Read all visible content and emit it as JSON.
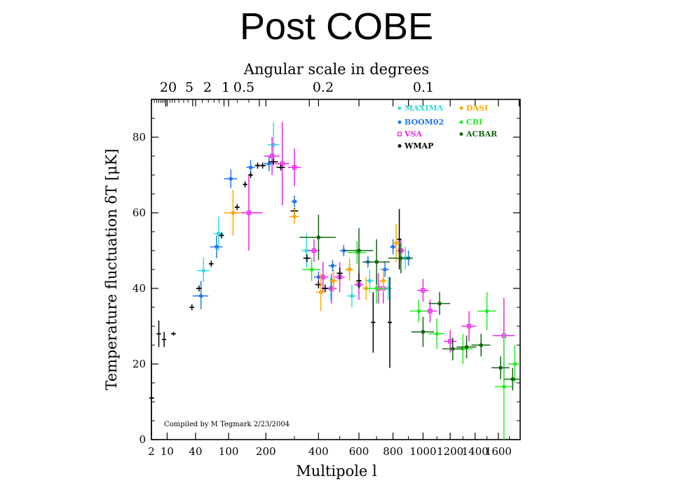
{
  "slide": {
    "title": "Post COBE"
  },
  "chart_data": {
    "type": "scatter",
    "title": "",
    "xlabel": "Multipole l",
    "ylabel": "Temperature fluctuation δT  [μK]",
    "top_axis_label": "Angular scale in degrees",
    "top_ticks": [
      "20",
      "5",
      "2",
      "1",
      "0.5",
      "0.2",
      "0.1"
    ],
    "x_ticks": [
      "2",
      "10",
      "40",
      "100",
      "200",
      "400",
      "600",
      "800",
      "1000",
      "1200",
      "1400",
      "1600"
    ],
    "y_ticks": [
      "0",
      "20",
      "40",
      "60",
      "80"
    ],
    "ylim": [
      0,
      90
    ],
    "xlim": [
      2,
      1800
    ],
    "x_scale": "linear in sqrt(l)",
    "annotation": "Compiled by M Tegmark 2/23/2004",
    "legend_position": "top-right",
    "series": [
      {
        "name": "MAXIMA",
        "color": "#33dddd",
        "marker": "dot",
        "points": [
          [
            52,
            44.7,
            10,
            3,
            3.5
          ],
          [
            79,
            54.5,
            10,
            4.5,
            4.5
          ],
          [
            225,
            78,
            20,
            5,
            6
          ],
          [
            348,
            50,
            20,
            4.5,
            4.5
          ],
          [
            456,
            40,
            25,
            3,
            3
          ],
          [
            562,
            38,
            25,
            3,
            3
          ],
          [
            660,
            42,
            25,
            3,
            3
          ],
          [
            770,
            40,
            25,
            3,
            3
          ],
          [
            880,
            48,
            25,
            3,
            3
          ]
        ]
      },
      {
        "name": "BOOM02",
        "color": "#2277ee",
        "marker": "dot",
        "points": [
          [
            48,
            38,
            12,
            3.5,
            4
          ],
          [
            75,
            51,
            12,
            3,
            3
          ],
          [
            105,
            69,
            15,
            2.5,
            2.5
          ],
          [
            155,
            72,
            12,
            2,
            2
          ],
          [
            210,
            73,
            15,
            2,
            2
          ],
          [
            300,
            63,
            12,
            1.5,
            1.5
          ],
          [
            400,
            43,
            20,
            1.5,
            1.5
          ],
          [
            465,
            46,
            20,
            1.5,
            1.5
          ],
          [
            520,
            50,
            20,
            1.5,
            1.5
          ],
          [
            650,
            47,
            25,
            1.5,
            1.5
          ],
          [
            750,
            45,
            25,
            2,
            2
          ],
          [
            800,
            51,
            20,
            2,
            2
          ],
          [
            900,
            48,
            25,
            2,
            2
          ]
        ]
      },
      {
        "name": "VSA",
        "color": "#ee22ee",
        "marker": "square",
        "points": [
          [
            150,
            60,
            40,
            10,
            10
          ],
          [
            220,
            75,
            25,
            5,
            5
          ],
          [
            255,
            73,
            25,
            11,
            11
          ],
          [
            300,
            72,
            25,
            5,
            5
          ],
          [
            380,
            50,
            25,
            3,
            3
          ],
          [
            420,
            43,
            25,
            4,
            4
          ],
          [
            460,
            40,
            25,
            4,
            4
          ],
          [
            500,
            43,
            25,
            4,
            4
          ],
          [
            600,
            41,
            25,
            4,
            4
          ],
          [
            710,
            40,
            25,
            4,
            4
          ],
          [
            740,
            40,
            25,
            4,
            4
          ],
          [
            850,
            50,
            25,
            3,
            3
          ],
          [
            1000,
            39.5,
            40,
            3,
            3
          ],
          [
            1050,
            34,
            50,
            3,
            3
          ],
          [
            1200,
            26,
            50,
            3,
            3
          ],
          [
            1350,
            30,
            60,
            4,
            4
          ],
          [
            1650,
            27.5,
            100,
            10,
            10
          ]
        ]
      },
      {
        "name": "WMAP",
        "color": "#000000",
        "marker": "plus",
        "points": [
          [
            2,
            11,
            1,
            10,
            10
          ],
          [
            5,
            28,
            1,
            3.5,
            3.5
          ],
          [
            8,
            26.5,
            1,
            2,
            2
          ],
          [
            15,
            28,
            2,
            0.5,
            0.5
          ],
          [
            35,
            35,
            3,
            0.8,
            0.8
          ],
          [
            45,
            40,
            4,
            0.8,
            0.8
          ],
          [
            65,
            46.5,
            4,
            0.8,
            0.8
          ],
          [
            85,
            54,
            5,
            0.8,
            0.8
          ],
          [
            120,
            61.5,
            6,
            0.8,
            0.8
          ],
          [
            140,
            67.5,
            6,
            0.8,
            0.8
          ],
          [
            155,
            70,
            6,
            0.8,
            0.8
          ],
          [
            175,
            72.5,
            8,
            0.8,
            0.8
          ],
          [
            190,
            72.5,
            10,
            0.8,
            0.8
          ],
          [
            225,
            73.5,
            15,
            0.8,
            0.8
          ],
          [
            250,
            72,
            15,
            0.8,
            0.8
          ],
          [
            300,
            60.5,
            15,
            0.8,
            0.8
          ],
          [
            350,
            48,
            15,
            1,
            1
          ],
          [
            400,
            41,
            15,
            1,
            1
          ],
          [
            430,
            40,
            15,
            1,
            1
          ],
          [
            500,
            44,
            15,
            1.5,
            1.5
          ],
          [
            550,
            45,
            15,
            1.5,
            1.5
          ],
          [
            600,
            42,
            15,
            2,
            2
          ],
          [
            680,
            31,
            12,
            8,
            8
          ],
          [
            780,
            31,
            12,
            12,
            12
          ],
          [
            840,
            53,
            12,
            8,
            8
          ]
        ]
      },
      {
        "name": "DASI",
        "color": "#ffaa00",
        "marker": "dot",
        "points": [
          [
            110,
            60,
            20,
            6,
            6
          ],
          [
            300,
            59,
            20,
            2,
            2
          ],
          [
            410,
            39,
            20,
            5,
            5
          ],
          [
            470,
            42,
            20,
            3,
            3
          ],
          [
            550,
            45,
            20,
            3,
            3
          ],
          [
            640,
            40,
            20,
            3,
            3
          ],
          [
            740,
            42,
            20,
            3,
            3
          ],
          [
            820,
            52,
            20,
            5,
            5
          ]
        ]
      },
      {
        "name": "CBI",
        "color": "#22ee22",
        "marker": "dot",
        "points": [
          [
            370,
            45,
            40,
            3,
            3
          ],
          [
            590,
            49.5,
            50,
            3,
            3
          ],
          [
            700,
            40,
            60,
            4,
            4
          ],
          [
            970,
            34,
            60,
            3,
            3
          ],
          [
            1100,
            28,
            60,
            4,
            4
          ],
          [
            1300,
            24,
            80,
            4,
            4
          ],
          [
            1500,
            34,
            80,
            5,
            5
          ],
          [
            1650,
            14,
            80,
            14,
            14
          ],
          [
            1750,
            20,
            60,
            5,
            5
          ]
        ]
      },
      {
        "name": "ACBAR",
        "color": "#116611",
        "marker": "dot",
        "points": [
          [
            400,
            53.5,
            80,
            6,
            6
          ],
          [
            600,
            50,
            80,
            6,
            6
          ],
          [
            700,
            47,
            80,
            6,
            6
          ],
          [
            850,
            48,
            80,
            4,
            4
          ],
          [
            1000,
            28.5,
            80,
            4,
            4
          ],
          [
            1120,
            36,
            80,
            3,
            3
          ],
          [
            1220,
            24,
            80,
            3,
            3
          ],
          [
            1330,
            24.5,
            80,
            3,
            3
          ],
          [
            1450,
            25,
            80,
            3,
            3
          ],
          [
            1620,
            19,
            80,
            3,
            3
          ],
          [
            1730,
            16,
            80,
            3,
            3
          ]
        ]
      }
    ]
  }
}
